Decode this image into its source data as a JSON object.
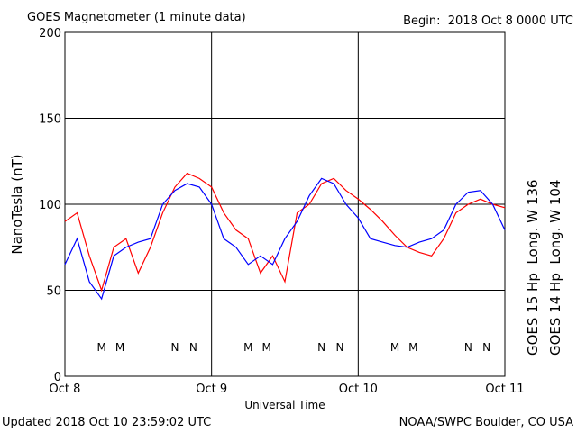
{
  "chart_data": {
    "type": "line",
    "title": "GOES Magnetometer (1 minute data)",
    "subtitle": "Begin:  2018 Oct 8 0000 UTC",
    "footer_left": "Updated 2018 Oct 10 23:59:02 UTC",
    "footer_right": "NOAA/SWPC Boulder, CO USA",
    "xlabel": "Universal Time",
    "ylabel": "NanoTesla (nT)",
    "x": [
      0,
      2,
      4,
      6,
      8,
      10,
      12,
      14,
      16,
      18,
      20,
      22,
      24,
      26,
      28,
      30,
      32,
      34,
      36,
      38,
      40,
      42,
      44,
      46,
      48,
      50,
      52,
      54,
      56,
      58,
      60,
      62,
      64,
      66,
      68,
      70,
      72
    ],
    "series": [
      {
        "name": "GOES 15 Hp  Long. W 136",
        "color": "#ff0000",
        "values": [
          90,
          95,
          70,
          50,
          75,
          80,
          60,
          75,
          95,
          110,
          118,
          115,
          110,
          95,
          85,
          80,
          60,
          70,
          55,
          95,
          100,
          112,
          115,
          108,
          103,
          97,
          90,
          82,
          75,
          72,
          70,
          80,
          95,
          100,
          103,
          100,
          98
        ]
      },
      {
        "name": "GOES 14 Hp  Long. W 104",
        "color": "#0000ff",
        "values": [
          65,
          80,
          55,
          45,
          70,
          75,
          78,
          80,
          100,
          108,
          112,
          110,
          100,
          80,
          75,
          65,
          70,
          65,
          80,
          90,
          105,
          115,
          112,
          100,
          92,
          80,
          78,
          76,
          75,
          78,
          80,
          85,
          100,
          107,
          108,
          100,
          85
        ]
      }
    ],
    "annotations": [
      {
        "text": "M",
        "x": 6,
        "color": "#0000ff"
      },
      {
        "text": "M",
        "x": 9,
        "color": "#ff0000"
      },
      {
        "text": "N",
        "x": 18,
        "color": "#0000ff"
      },
      {
        "text": "N",
        "x": 21,
        "color": "#ff0000"
      },
      {
        "text": "M",
        "x": 30,
        "color": "#0000ff"
      },
      {
        "text": "M",
        "x": 33,
        "color": "#ff0000"
      },
      {
        "text": "N",
        "x": 42,
        "color": "#0000ff"
      },
      {
        "text": "N",
        "x": 45,
        "color": "#ff0000"
      },
      {
        "text": "M",
        "x": 54,
        "color": "#0000ff"
      },
      {
        "text": "M",
        "x": 57,
        "color": "#ff0000"
      },
      {
        "text": "N",
        "x": 66,
        "color": "#0000ff"
      },
      {
        "text": "N",
        "x": 69,
        "color": "#ff0000"
      }
    ],
    "xlim": [
      0,
      72
    ],
    "xticks": [
      {
        "value": 0,
        "label": "Oct 8"
      },
      {
        "value": 24,
        "label": "Oct 9"
      },
      {
        "value": 48,
        "label": "Oct 10"
      },
      {
        "value": 72,
        "label": "Oct 11"
      }
    ],
    "ylim": [
      0,
      200
    ],
    "yticks": [
      0,
      50,
      100,
      150,
      200
    ],
    "grid": true
  }
}
